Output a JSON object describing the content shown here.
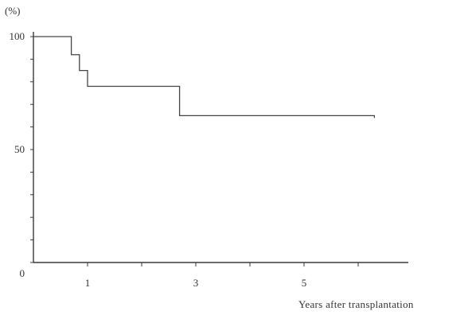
{
  "chart_data": {
    "type": "line",
    "step": true,
    "title": "",
    "ylabel": "(%)",
    "xlabel": "Years after transplantation",
    "xlim": [
      0,
      7
    ],
    "ylim": [
      0,
      100
    ],
    "x_tick_labels": [
      {
        "value": 1,
        "label": "1"
      },
      {
        "value": 3,
        "label": "3"
      },
      {
        "value": 5,
        "label": "5"
      }
    ],
    "x_minor_ticks": [
      2,
      4,
      6
    ],
    "y_tick_labels": [
      {
        "value": 0,
        "label": "0"
      },
      {
        "value": 50,
        "label": "50"
      },
      {
        "value": 100,
        "label": "100"
      }
    ],
    "y_minor_ticks": [
      10,
      20,
      30,
      40,
      60,
      70,
      80,
      90
    ],
    "grid": false,
    "series": [
      {
        "x": [
          0,
          0.7,
          0.85,
          1.0,
          2.7,
          6.3
        ],
        "y": [
          100,
          92,
          85,
          78,
          65,
          64
        ]
      }
    ]
  }
}
